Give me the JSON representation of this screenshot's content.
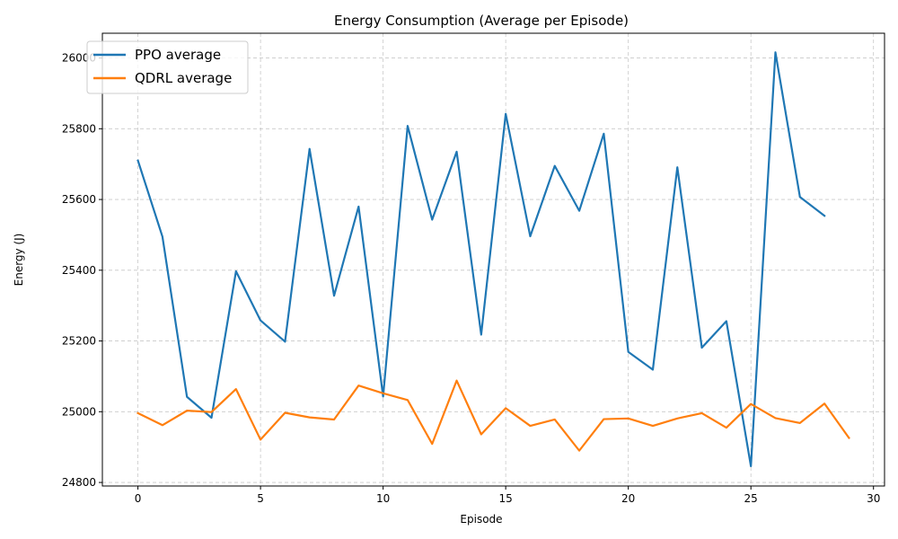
{
  "chart_data": {
    "type": "line",
    "title": "Energy Consumption (Average per Episode)",
    "xlabel": "Episode",
    "ylabel": "Energy (J)",
    "xlim": [
      -1.45,
      30.45
    ],
    "ylim": [
      24790,
      26070
    ],
    "xticks": [
      0,
      5,
      10,
      15,
      20,
      25,
      30
    ],
    "yticks": [
      24800,
      25000,
      25200,
      25400,
      25600,
      25800,
      26000
    ],
    "grid": true,
    "legend_position": "top-left",
    "series": [
      {
        "name": "PPO average",
        "color": "#1f77b4",
        "x": [
          0,
          1,
          2,
          3,
          4,
          5,
          6,
          7,
          8,
          9,
          10,
          11,
          12,
          13,
          14,
          15,
          16,
          17,
          18,
          19,
          20,
          21,
          22,
          23,
          24,
          25,
          26,
          27,
          28
        ],
        "values": [
          25710,
          25495,
          25042,
          24983,
          25397,
          25258,
          25198,
          25743,
          25328,
          25580,
          25043,
          25808,
          25543,
          25735,
          25218,
          25842,
          25496,
          25695,
          25568,
          25786,
          25169,
          25119,
          25691,
          25181,
          25256,
          24846,
          26016,
          25607,
          25554
        ]
      },
      {
        "name": "QDRL average",
        "color": "#ff7f0e",
        "x": [
          0,
          1,
          2,
          3,
          4,
          5,
          6,
          7,
          8,
          9,
          10,
          11,
          12,
          13,
          14,
          15,
          16,
          17,
          18,
          19,
          20,
          21,
          22,
          23,
          24,
          25,
          26,
          27,
          28,
          29
        ],
        "values": [
          24996,
          24962,
          25003,
          24999,
          25064,
          24921,
          24997,
          24984,
          24978,
          25074,
          25052,
          25033,
          24909,
          25088,
          24936,
          25010,
          24960,
          24978,
          24890,
          24979,
          24981,
          24960,
          24981,
          24996,
          24955,
          25022,
          24982,
          24968,
          25023,
          24926
        ]
      }
    ]
  }
}
